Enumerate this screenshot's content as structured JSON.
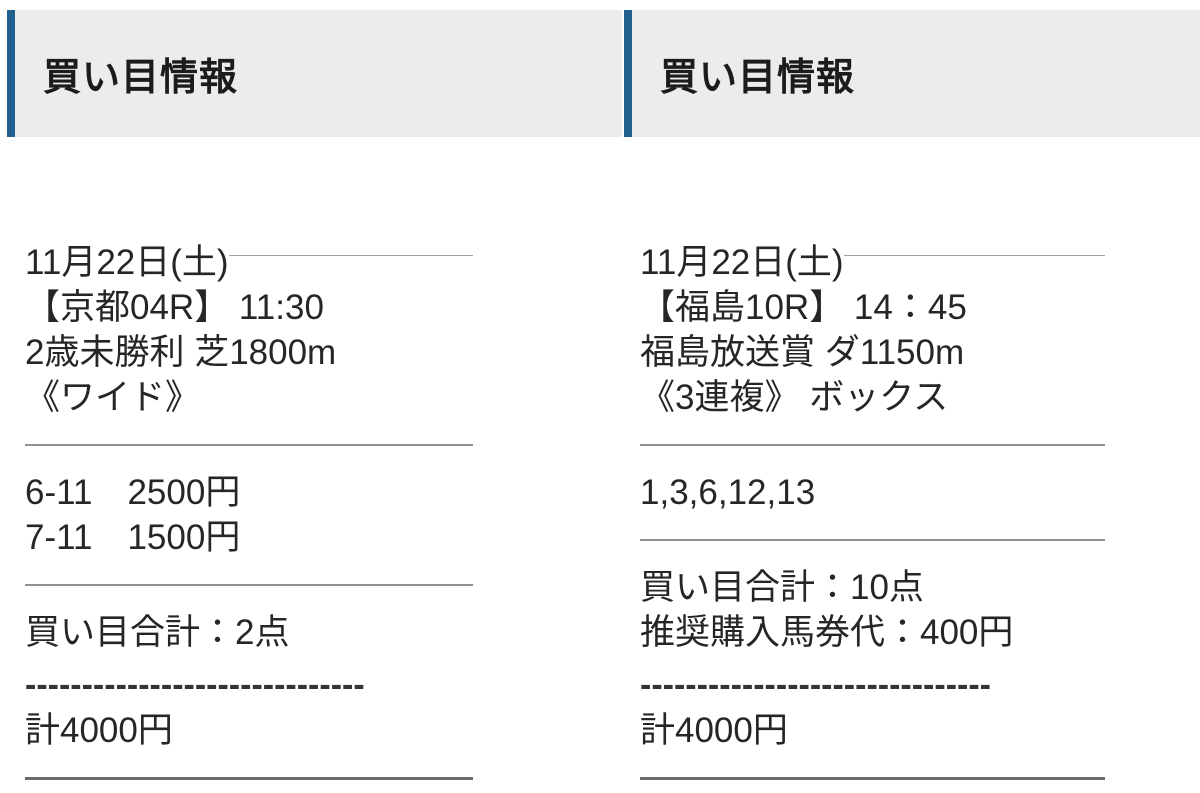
{
  "colors": {
    "accent": "#21608f",
    "header_bg": "#ececec"
  },
  "panels": [
    {
      "header": "買い目情報",
      "date": "11月22日(土)",
      "race_title": "【京都04R】 11:30",
      "race_conditions": "2歳未勝利 芝1800m",
      "bet_type": "《ワイド》",
      "bets": [
        "6-11　2500円",
        "7-11　1500円"
      ],
      "totals": [
        "買い目合計：2点"
      ],
      "dashes": "------------------------------",
      "total_amount": "計4000円"
    },
    {
      "header": "買い目情報",
      "date": "11月22日(土)",
      "race_title": "【福島10R】 14：45",
      "race_conditions": "福島放送賞 ダ1150m",
      "bet_type": "《3連複》 ボックス",
      "bets": [
        "1,3,6,12,13"
      ],
      "totals": [
        "買い目合計：10点",
        "推奨購入馬券代：400円"
      ],
      "dashes": "-------------------------------",
      "total_amount": "計4000円"
    }
  ]
}
